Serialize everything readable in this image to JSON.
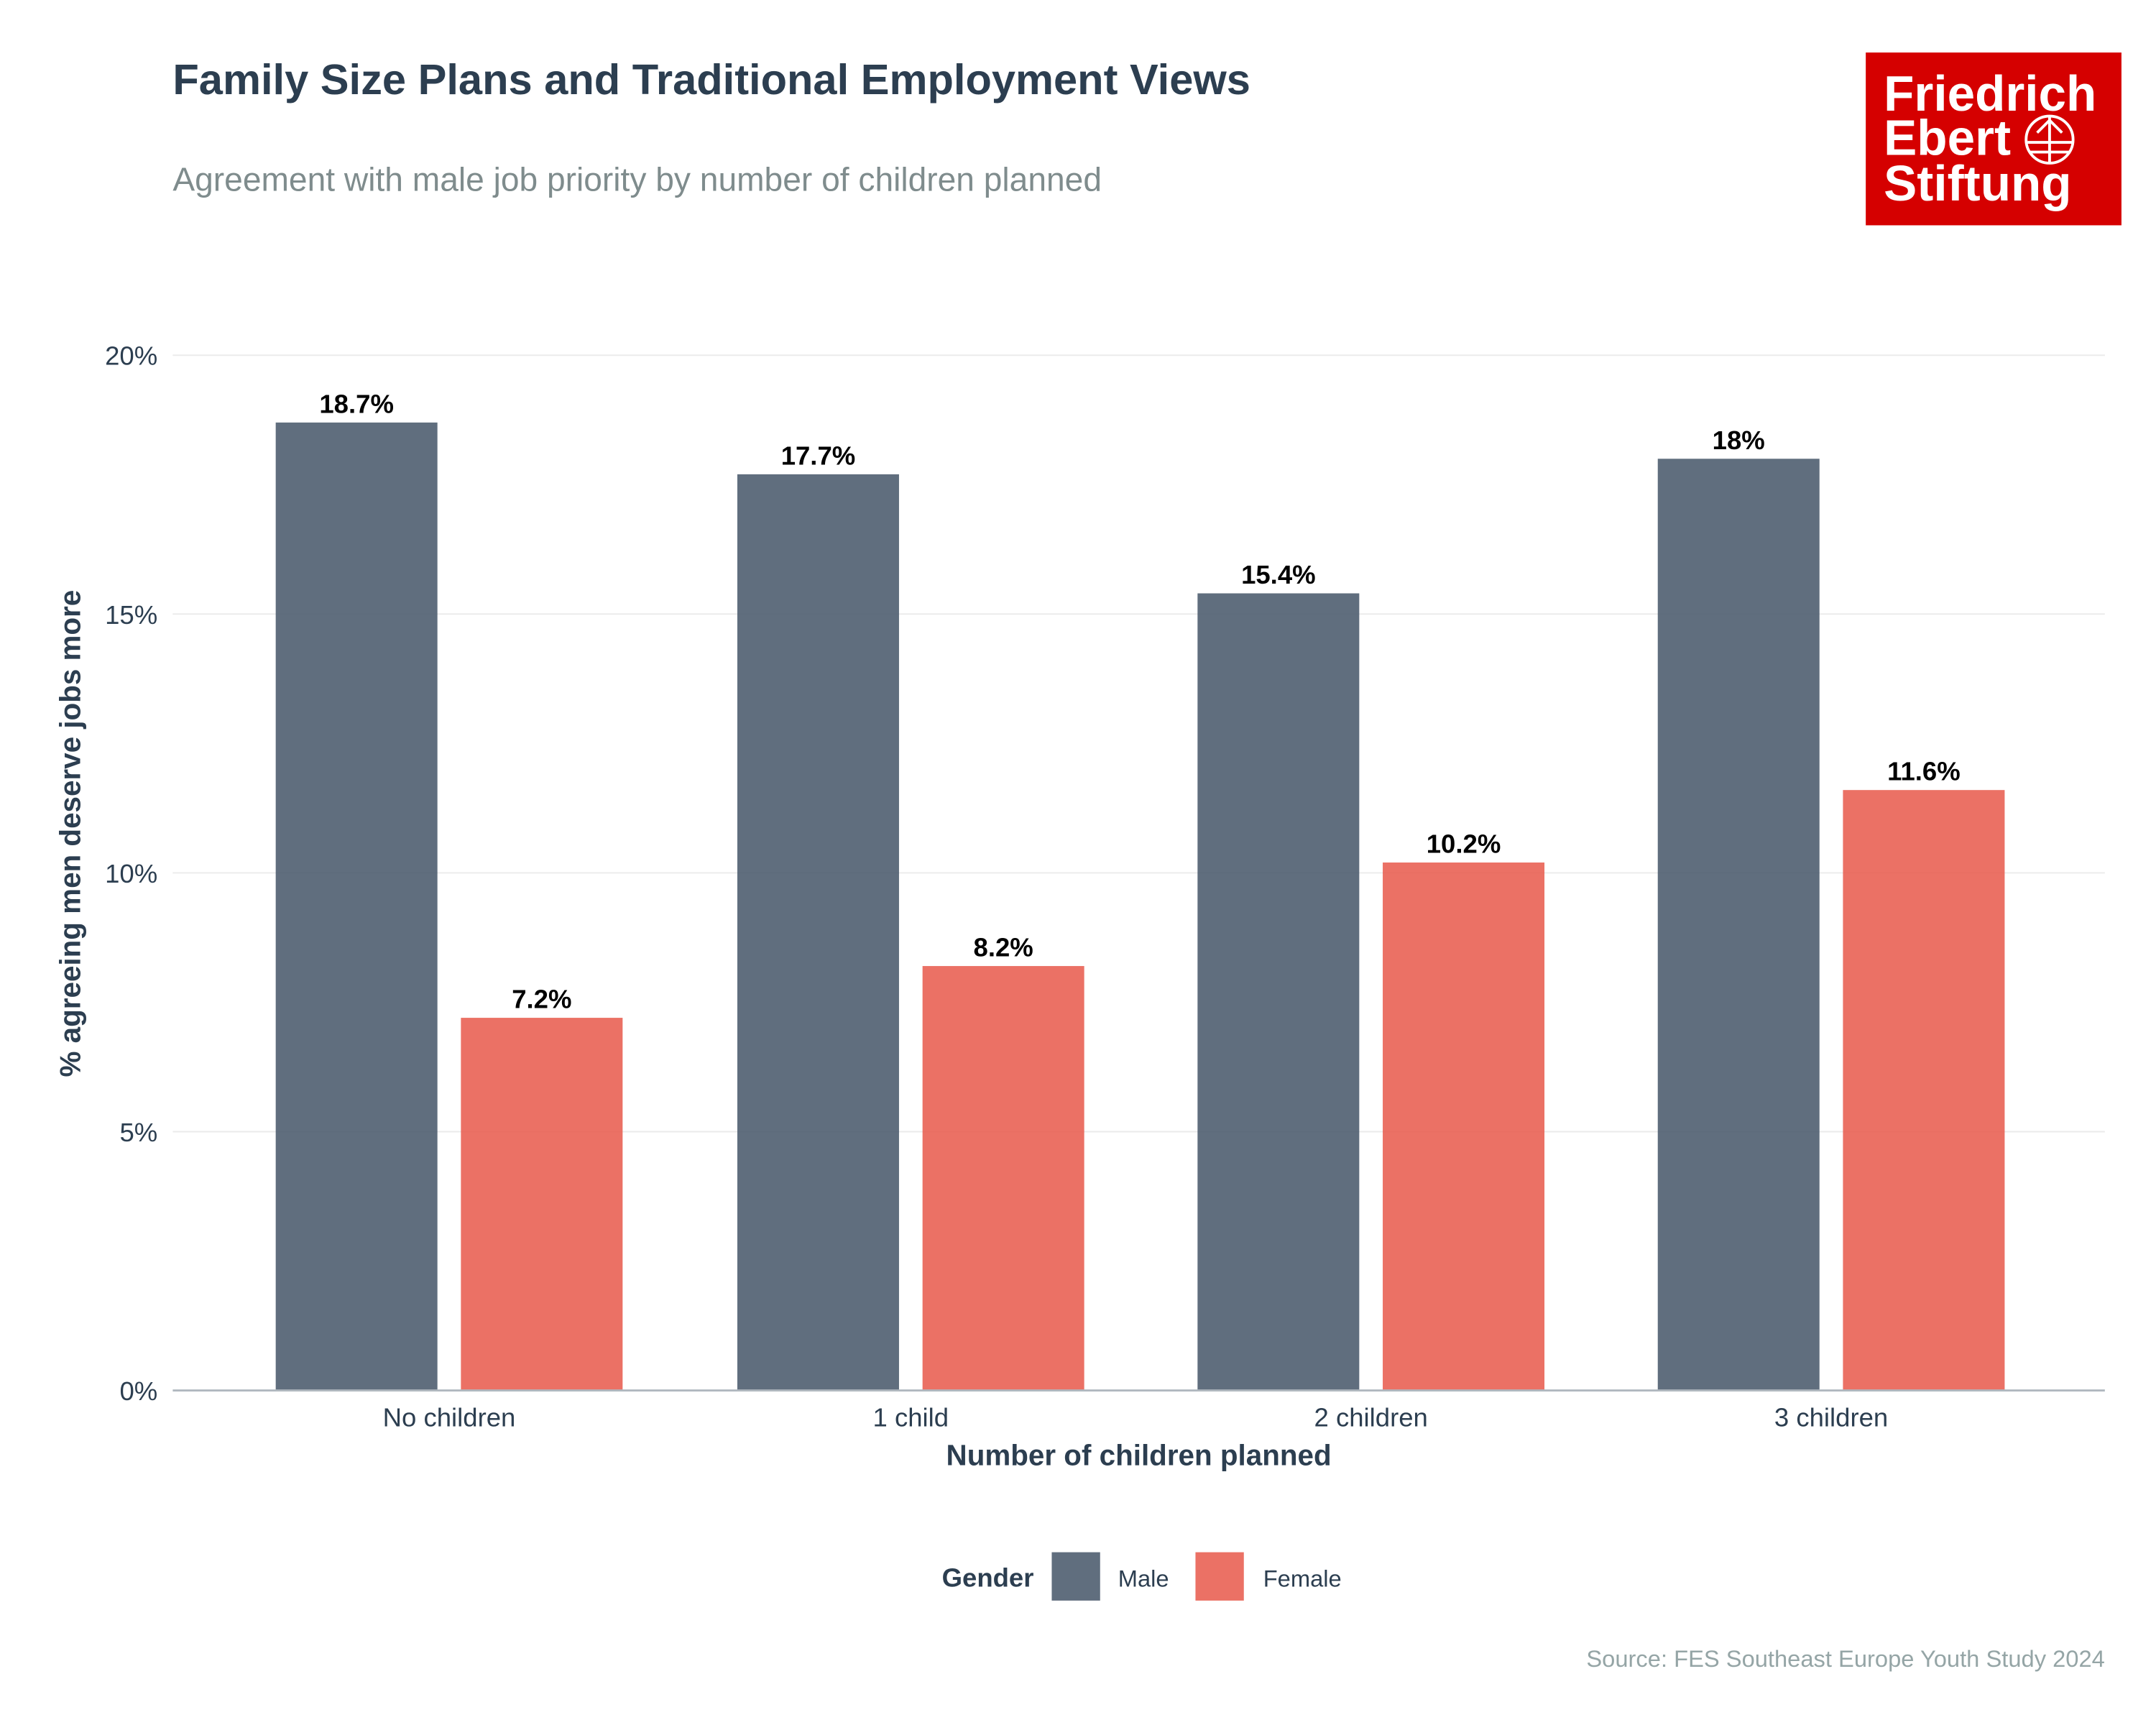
{
  "chart_data": {
    "type": "bar",
    "title": "Family Size Plans and Traditional Employment Views",
    "subtitle": "Agreement with male job priority by number of children planned",
    "xlabel": "Number of children planned",
    "ylabel": "% agreeing men deserve jobs more",
    "categories": [
      "No children",
      "1 child",
      "2 children",
      "3 children"
    ],
    "series": [
      {
        "name": "Male",
        "color": "#4a5a6c",
        "values": [
          18.7,
          17.7,
          15.4,
          18.0
        ],
        "labels": [
          "18.7%",
          "17.7%",
          "15.4%",
          "18%"
        ]
      },
      {
        "name": "Female",
        "color": "#e85d50",
        "values": [
          7.2,
          8.2,
          10.2,
          11.6
        ],
        "labels": [
          "7.2%",
          "8.2%",
          "10.2%",
          "11.6%"
        ]
      }
    ],
    "ylim": [
      0,
      20
    ],
    "yticks": [
      0,
      5,
      10,
      15,
      20
    ],
    "ytick_labels": [
      "0%",
      "5%",
      "10%",
      "15%",
      "20%"
    ],
    "grid": true,
    "legend": {
      "title": "Gender",
      "position": "bottom"
    },
    "caption": "Source: FES Southeast Europe Youth Study 2024"
  },
  "logo": {
    "lines": [
      "Friedrich",
      "Ebert",
      "Stiftung"
    ],
    "color": "#d50000"
  }
}
